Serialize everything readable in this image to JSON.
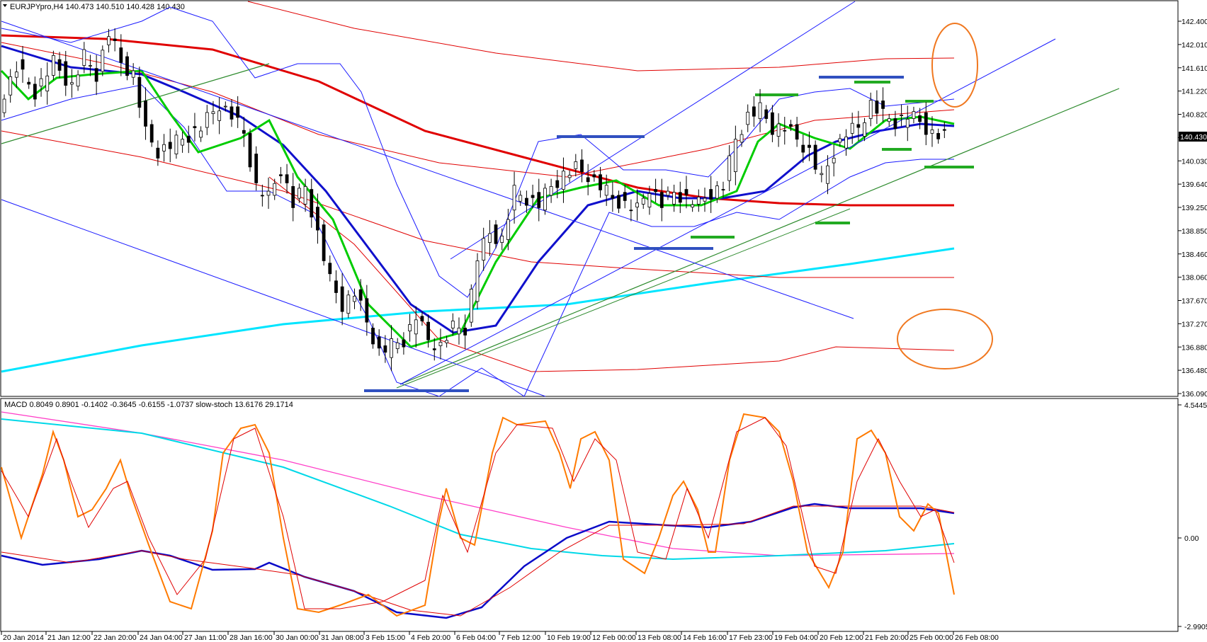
{
  "chart_data": [
    {
      "type": "candlestick",
      "header": "EURJPYpro,H4  140.473 140.510 140.428 140.430",
      "symbol": "EURJPYpro",
      "timeframe": "H4",
      "ohlc_last": {
        "open": 140.473,
        "high": 140.51,
        "low": 140.428,
        "close": 140.43
      },
      "last_price_label": "140.430",
      "y_ticks": [
        "142.400",
        "142.010",
        "141.610",
        "141.220",
        "140.820",
        "140.430",
        "140.030",
        "139.640",
        "139.250",
        "138.850",
        "138.460",
        "138.060",
        "137.670",
        "137.270",
        "136.880",
        "136.480",
        "136.090"
      ],
      "ylim": [
        136.09,
        142.7
      ],
      "x_ticks": [
        "20 Jan 2014",
        "21 Jan 12:00",
        "22 Jan 20:00",
        "24 Jan 04:00",
        "27 Jan 11:00",
        "28 Jan 16:00",
        "30 Jan 00:00",
        "31 Jan 08:00",
        "3 Feb 15:00",
        "4 Feb 20:00",
        "6 Feb 04:00",
        "7 Feb 12:00",
        "10 Feb 19:00",
        "12 Feb 00:00",
        "13 Feb 08:00",
        "14 Feb 16:00",
        "17 Feb 23:00",
        "19 Feb 04:00",
        "20 Feb 12:00",
        "21 Feb 20:00",
        "25 Feb 00:00",
        "26 Feb 08:00"
      ],
      "close_path": [
        [
          0,
          141.0
        ],
        [
          3,
          141.6
        ],
        [
          6,
          141.2
        ],
        [
          9,
          141.7
        ],
        [
          12,
          141.3
        ],
        [
          14,
          141.8
        ],
        [
          16,
          141.5
        ],
        [
          18,
          142.2
        ],
        [
          20,
          141.7
        ],
        [
          22,
          141.5
        ],
        [
          24,
          140.5
        ],
        [
          26,
          140.2
        ],
        [
          28,
          140.3
        ],
        [
          30,
          140.4
        ],
        [
          33,
          140.6
        ],
        [
          36,
          141.0
        ],
        [
          38,
          140.8
        ],
        [
          40,
          140.5
        ],
        [
          42,
          139.6
        ],
        [
          44,
          139.4
        ],
        [
          46,
          139.9
        ],
        [
          48,
          139.3
        ],
        [
          50,
          139.6
        ],
        [
          52,
          138.8
        ],
        [
          54,
          138.0
        ],
        [
          56,
          137.6
        ],
        [
          58,
          137.8
        ],
        [
          60,
          137.3
        ],
        [
          62,
          136.8
        ],
        [
          64,
          136.9
        ],
        [
          66,
          137.0
        ],
        [
          68,
          137.4
        ],
        [
          70,
          137.0
        ],
        [
          72,
          136.9
        ],
        [
          74,
          137.2
        ],
        [
          76,
          137.2
        ],
        [
          78,
          138.4
        ],
        [
          80,
          138.8
        ],
        [
          82,
          138.7
        ],
        [
          84,
          139.5
        ],
        [
          86,
          139.4
        ],
        [
          88,
          139.3
        ],
        [
          90,
          139.6
        ],
        [
          92,
          139.8
        ],
        [
          94,
          139.9
        ],
        [
          96,
          139.8
        ],
        [
          98,
          139.6
        ],
        [
          100,
          139.4
        ],
        [
          102,
          139.3
        ],
        [
          104,
          139.2
        ],
        [
          106,
          139.6
        ],
        [
          108,
          139.3
        ],
        [
          110,
          139.5
        ],
        [
          112,
          139.4
        ],
        [
          114,
          139.3
        ],
        [
          116,
          139.5
        ],
        [
          118,
          139.6
        ],
        [
          120,
          140.4
        ],
        [
          122,
          140.8
        ],
        [
          124,
          140.9
        ],
        [
          126,
          140.6
        ],
        [
          128,
          140.6
        ],
        [
          130,
          140.4
        ],
        [
          132,
          140.2
        ],
        [
          134,
          139.7
        ],
        [
          136,
          140.2
        ],
        [
          138,
          140.5
        ],
        [
          140,
          140.6
        ],
        [
          142,
          141.0
        ],
        [
          144,
          140.8
        ],
        [
          146,
          140.7
        ],
        [
          148,
          140.8
        ],
        [
          150,
          140.7
        ],
        [
          152,
          140.5
        ],
        [
          154,
          140.43
        ]
      ],
      "annotations": [
        "orange circle near 141.6",
        "orange circle near 137.1",
        "trend channels",
        "support/resistance dashes"
      ]
    },
    {
      "type": "line",
      "header": "MACD 0.8049 0.8901 -0.1402 -0.3645 -0.6155 -1.0737  slow-stoch 13.6176 29.1714",
      "indicator_values": {
        "macd": [
          0.8049,
          0.8901,
          -0.1402,
          -0.3645,
          -0.6155,
          -1.0737
        ],
        "slow_stoch": [
          13.6176,
          29.1714
        ]
      },
      "y_ticks": [
        "4.5445",
        "0.00",
        "-2.9905"
      ],
      "ylim": [
        -2.9905,
        4.5445
      ]
    }
  ]
}
